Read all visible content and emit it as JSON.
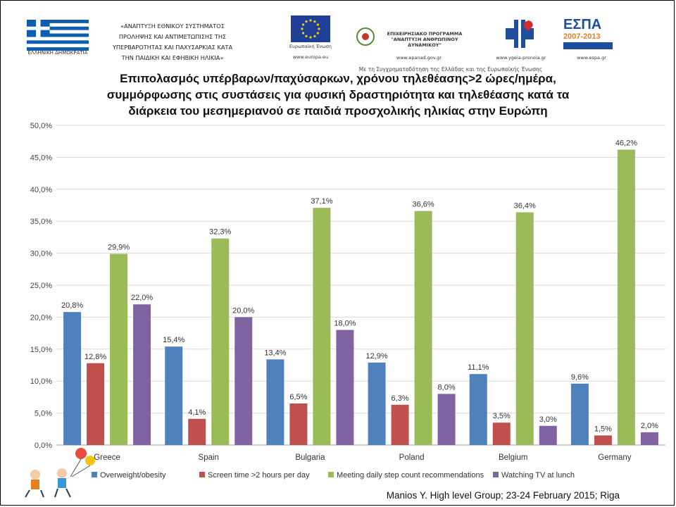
{
  "header": {
    "flag_caption": "ΕΛΛΗΝΙΚΗ ΔΗΜΟΚΡΑΤΙΑ",
    "project_lines": [
      "«ΑΝΑΠΤΥΞΗ ΕΘΝΙΚΟΥ ΣΥΣΤΗΜΑΤΟΣ",
      "ΠΡΟΛΗΨΗΣ ΚΑΙ ΑΝΤΙΜΕΤΩΠΙΣΗΣ ΤΗΣ",
      "ΥΠΕΡΒΑΡΟΤΗΤΑΣ ΚΑΙ ΠΑΧΥΣΑΡΚΙΑΣ ΚΑΤΑ",
      "ΤΗΝ ΠΑΙΔΙΚΗ ΚΑΙ ΕΦΗΒΙΚΗ ΗΛΙΚΙΑ»"
    ],
    "eu_caption": "Ευρωπαϊκή Ένωση",
    "eu_url": "www.europa.eu",
    "op_lines": [
      "ΕΠΙΧΕΙΡΗΣΙΑΚΟ ΠΡΟΓΡΑΜΜΑ",
      "\"ΑΝΑΠΤΥΞΗ ΑΝΘΡΩΠΙΝΟΥ ΔΥΝΑΜΙΚΟΥ\""
    ],
    "op_url": "www.epanad.gov.gr",
    "ministry_url": "www.ygeia-pronoia.gr",
    "espa_label": "ΕΣΠΑ",
    "espa_years": "2007-2013",
    "espa_url": "www.espa.gr",
    "cofund": "Με τη Συγχρηματοδότηση της Ελλάδας και της Ευρωπαϊκής Ένωσης"
  },
  "title_lines": [
    "Επιπολασμός υπέρβαρων/παχύσαρκων, χρόνου τηλεθέασης>2 ώρες/ημέρα,",
    "συμμόρφωσης στις συστάσεις για φυσική δραστηριότητα και τηλεθέασης κατά τα",
    "διάρκεια του μεσημεριανού σε παιδιά προσχολικής ηλικίας στην Ευρώπη"
  ],
  "footer": "Manios Y. High level Group; 23-24 February 2015; Riga",
  "chart_data": {
    "type": "bar",
    "categories": [
      "Greece",
      "Spain",
      "Bulgaria",
      "Poland",
      "Belgium",
      "Germany"
    ],
    "series": [
      {
        "name": "Overweight/obesity",
        "color": "#4f81bd",
        "values": [
          20.8,
          15.4,
          13.4,
          12.9,
          11.1,
          9.6
        ]
      },
      {
        "name": "Screen time >2 hours per day",
        "color": "#c0504d",
        "values": [
          12.8,
          4.1,
          6.5,
          6.3,
          3.5,
          1.5
        ]
      },
      {
        "name": "Meeting daily step count recommendations",
        "color": "#9bbb59",
        "values": [
          29.9,
          32.3,
          37.1,
          36.6,
          36.4,
          46.2
        ]
      },
      {
        "name": "Watching TV at lunch",
        "color": "#8064a2",
        "values": [
          22.0,
          20.0,
          18.0,
          8.0,
          3.0,
          2.0
        ]
      }
    ],
    "ylim": [
      0,
      50
    ],
    "yticks": [
      0,
      5,
      10,
      15,
      20,
      25,
      30,
      35,
      40,
      45,
      50
    ],
    "grid": true,
    "legend": "bottom",
    "value_format": "one decimal with comma, percent"
  }
}
